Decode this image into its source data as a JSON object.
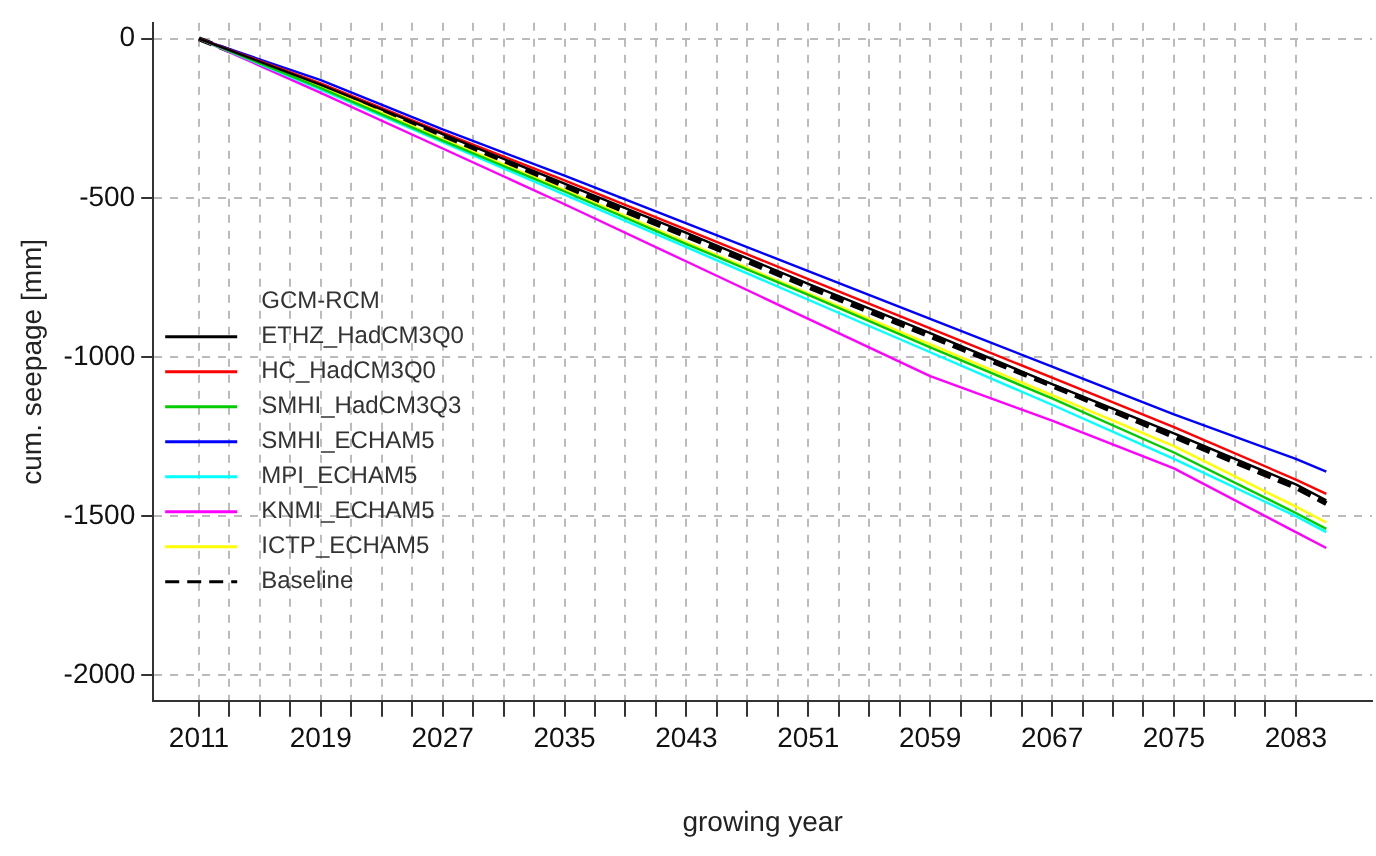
{
  "chart_data": {
    "type": "line",
    "xlabel": "growing year",
    "ylabel": "cum. seepage [mm]",
    "legend_title": "GCM-RCM",
    "legend": "left",
    "x": [
      2011,
      2019,
      2027,
      2035,
      2043,
      2051,
      2059,
      2067,
      2075,
      2083,
      2085
    ],
    "series": [
      {
        "name": "ETHZ_HadCM3Q0",
        "color": "#000000",
        "values": [
          0,
          -145,
          -300,
          -455,
          -610,
          -770,
          -925,
          -1085,
          -1240,
          -1400,
          -1450
        ]
      },
      {
        "name": "HC_HadCM3Q0",
        "color": "#ff0000",
        "values": [
          0,
          -140,
          -295,
          -445,
          -600,
          -755,
          -910,
          -1065,
          -1220,
          -1385,
          -1430
        ]
      },
      {
        "name": "SMHI_HadCM3Q3",
        "color": "#00cc00",
        "values": [
          0,
          -155,
          -320,
          -480,
          -645,
          -805,
          -970,
          -1130,
          -1300,
          -1490,
          -1540
        ]
      },
      {
        "name": "SMHI_ECHAM5",
        "color": "#0000ff",
        "values": [
          0,
          -130,
          -285,
          -430,
          -580,
          -730,
          -880,
          -1030,
          -1180,
          -1320,
          -1360
        ]
      },
      {
        "name": "MPI_ECHAM5",
        "color": "#00ffff",
        "values": [
          0,
          -160,
          -325,
          -490,
          -655,
          -820,
          -985,
          -1150,
          -1320,
          -1500,
          -1550
        ]
      },
      {
        "name": "KNMI_ECHAM5",
        "color": "#ff00ff",
        "values": [
          0,
          -170,
          -345,
          -520,
          -700,
          -880,
          -1060,
          -1200,
          -1350,
          -1550,
          -1600
        ]
      },
      {
        "name": "ICTP_ECHAM5",
        "color": "#ffff00",
        "values": [
          0,
          -150,
          -315,
          -475,
          -640,
          -800,
          -960,
          -1120,
          -1280,
          -1470,
          -1520
        ]
      },
      {
        "name": "Baseline",
        "color": "#000000",
        "line_style": "dashed",
        "values": [
          0,
          -150,
          -310,
          -465,
          -620,
          -780,
          -935,
          -1090,
          -1250,
          -1410,
          -1460
        ]
      }
    ],
    "xlim": [
      2008,
      2088
    ],
    "ylim": [
      -2080,
      50
    ],
    "xticks": [
      {
        "value": 2011,
        "label": "2011"
      },
      {
        "value": 2013,
        "label": null
      },
      {
        "value": 2015,
        "label": null
      },
      {
        "value": 2017,
        "label": null
      },
      {
        "value": 2019,
        "label": "2019"
      },
      {
        "value": 2021,
        "label": null
      },
      {
        "value": 2023,
        "label": null
      },
      {
        "value": 2025,
        "label": null
      },
      {
        "value": 2027,
        "label": "2027"
      },
      {
        "value": 2029,
        "label": null
      },
      {
        "value": 2031,
        "label": null
      },
      {
        "value": 2033,
        "label": null
      },
      {
        "value": 2035,
        "label": "2035"
      },
      {
        "value": 2037,
        "label": null
      },
      {
        "value": 2039,
        "label": null
      },
      {
        "value": 2041,
        "label": null
      },
      {
        "value": 2043,
        "label": "2043"
      },
      {
        "value": 2045,
        "label": null
      },
      {
        "value": 2047,
        "label": null
      },
      {
        "value": 2049,
        "label": null
      },
      {
        "value": 2051,
        "label": "2051"
      },
      {
        "value": 2053,
        "label": null
      },
      {
        "value": 2055,
        "label": null
      },
      {
        "value": 2057,
        "label": null
      },
      {
        "value": 2059,
        "label": "2059"
      },
      {
        "value": 2061,
        "label": null
      },
      {
        "value": 2063,
        "label": null
      },
      {
        "value": 2065,
        "label": null
      },
      {
        "value": 2067,
        "label": "2067"
      },
      {
        "value": 2069,
        "label": null
      },
      {
        "value": 2071,
        "label": null
      },
      {
        "value": 2073,
        "label": null
      },
      {
        "value": 2075,
        "label": "2075"
      },
      {
        "value": 2077,
        "label": null
      },
      {
        "value": 2079,
        "label": null
      },
      {
        "value": 2081,
        "label": null
      },
      {
        "value": 2083,
        "label": "2083"
      }
    ],
    "yticks": [
      0,
      -500,
      -1000,
      -1500,
      -2000
    ],
    "grid": true,
    "marker": "none"
  }
}
